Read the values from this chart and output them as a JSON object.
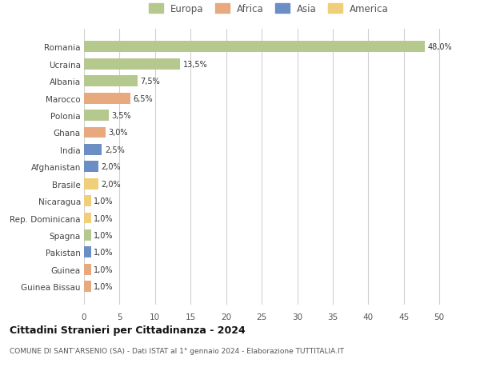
{
  "countries": [
    "Romania",
    "Ucraina",
    "Albania",
    "Marocco",
    "Polonia",
    "Ghana",
    "India",
    "Afghanistan",
    "Brasile",
    "Nicaragua",
    "Rep. Dominicana",
    "Spagna",
    "Pakistan",
    "Guinea",
    "Guinea Bissau"
  ],
  "values": [
    48.0,
    13.5,
    7.5,
    6.5,
    3.5,
    3.0,
    2.5,
    2.0,
    2.0,
    1.0,
    1.0,
    1.0,
    1.0,
    1.0,
    1.0
  ],
  "labels": [
    "48,0%",
    "13,5%",
    "7,5%",
    "6,5%",
    "3,5%",
    "3,0%",
    "2,5%",
    "2,0%",
    "2,0%",
    "1,0%",
    "1,0%",
    "1,0%",
    "1,0%",
    "1,0%",
    "1,0%"
  ],
  "continents": [
    "Europa",
    "Europa",
    "Europa",
    "Africa",
    "Europa",
    "Africa",
    "Asia",
    "Asia",
    "America",
    "America",
    "America",
    "Europa",
    "Asia",
    "Africa",
    "Africa"
  ],
  "continent_colors": {
    "Europa": "#b5c98e",
    "Africa": "#e8a97e",
    "Asia": "#6b8ec4",
    "America": "#f0cf7a"
  },
  "legend_order": [
    "Europa",
    "Africa",
    "Asia",
    "America"
  ],
  "xlim": [
    0,
    52
  ],
  "xticks": [
    0,
    5,
    10,
    15,
    20,
    25,
    30,
    35,
    40,
    45,
    50
  ],
  "title": "Cittadini Stranieri per Cittadinanza - 2024",
  "subtitle": "COMUNE DI SANT’ARSENIO (SA) - Dati ISTAT al 1° gennaio 2024 - Elaborazione TUTTITALIA.IT",
  "bg_color": "#ffffff",
  "grid_color": "#d0d0d0",
  "bar_height": 0.65
}
